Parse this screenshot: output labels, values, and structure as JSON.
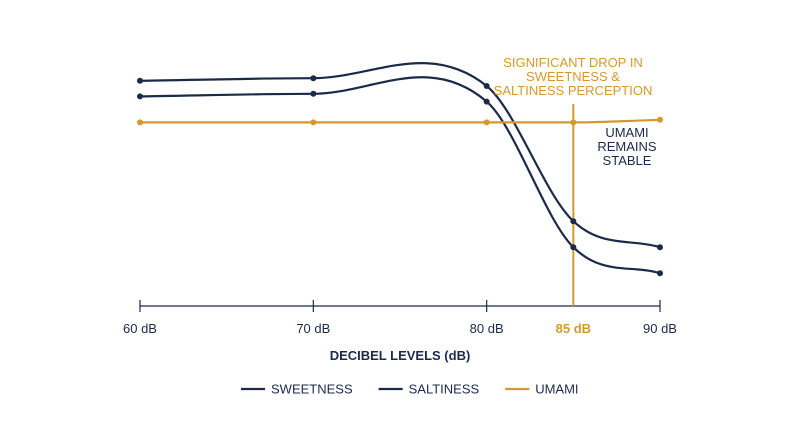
{
  "chart_data": {
    "type": "line",
    "title": "",
    "xlabel": "DECIBEL LEVELS (dB)",
    "ylabel": "",
    "x": [
      60,
      70,
      80,
      85,
      90
    ],
    "x_tick_labels": [
      "60 dB",
      "70 dB",
      "80 dB",
      "85 dB",
      "90 dB"
    ],
    "highlight_x": 85,
    "xlim": [
      60,
      90
    ],
    "ylim": [
      0,
      10
    ],
    "grid": false,
    "legend_position": "bottom-center",
    "series": [
      {
        "name": "SWEETNESS",
        "color": "#1c2a4a",
        "values": [
          9.2,
          9.3,
          9.0,
          3.8,
          2.8
        ]
      },
      {
        "name": "SALTINESS",
        "color": "#1c2a4a",
        "values": [
          8.6,
          8.7,
          8.4,
          2.8,
          1.8
        ]
      },
      {
        "name": "UMAMI",
        "color": "#d29a2e",
        "values": [
          7.6,
          7.6,
          7.6,
          7.6,
          7.7
        ]
      }
    ],
    "annotations": [
      {
        "lines": [
          "SIGNIFICANT DROP IN",
          "SWEETNESS &",
          "SALTINESS PERCEPTION"
        ],
        "color": "#d29a2e"
      },
      {
        "lines": [
          "UMAMI",
          "REMAINS",
          "STABLE"
        ],
        "color": "#1c2a4a"
      }
    ]
  }
}
